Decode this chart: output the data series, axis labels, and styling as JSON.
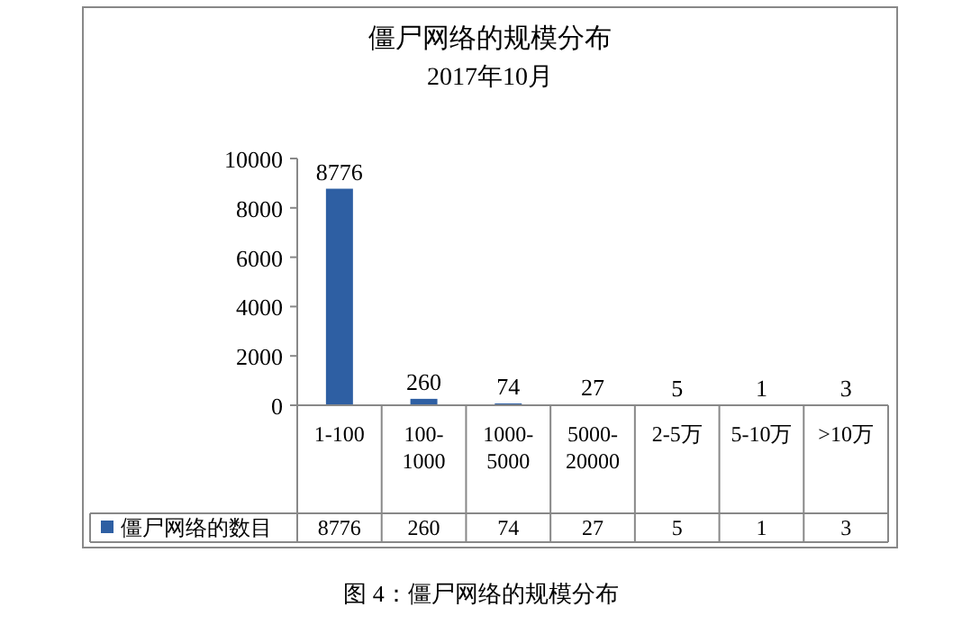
{
  "chart_data": {
    "type": "bar",
    "title": "僵尸网络的规模分布",
    "subtitle": "2017年10月",
    "categories": [
      "1-100",
      "100-1000",
      "1000-5000",
      "5000-20000",
      "2-5万",
      "5-10万",
      ">10万"
    ],
    "series": [
      {
        "name": "僵尸网络的数目",
        "color": "#2e5fa3",
        "values": [
          8776,
          260,
          74,
          27,
          5,
          1,
          3
        ]
      }
    ],
    "ylim": [
      0,
      10000
    ],
    "yticks": [
      0,
      2000,
      4000,
      6000,
      8000,
      10000
    ],
    "data_labels": true,
    "legend": "bottom",
    "grid": false,
    "annotations": [
      "图 4：僵尸网络的规模分布",
      "8776",
      "260",
      "74",
      "27",
      "5",
      "1",
      "3"
    ]
  }
}
